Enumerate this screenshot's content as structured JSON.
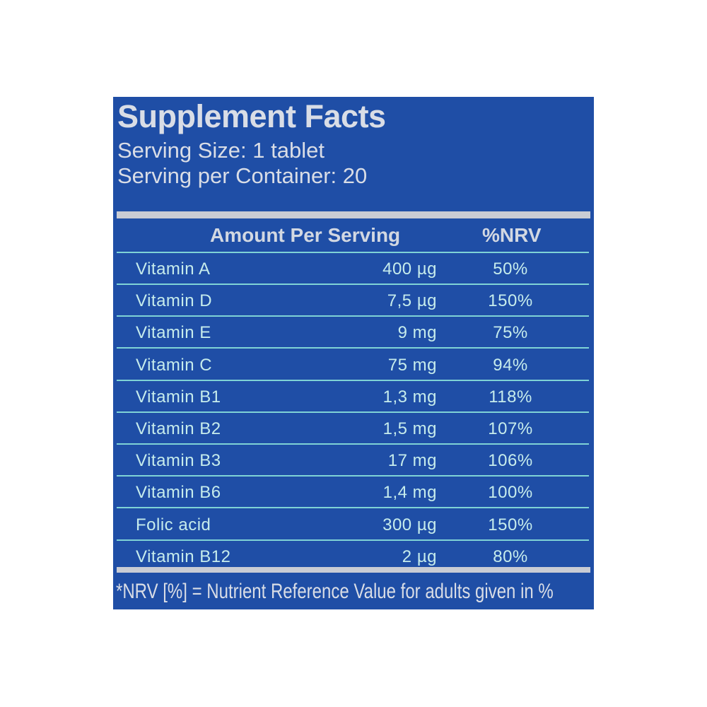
{
  "header": {
    "title": "Supplement Facts",
    "serving_size": "Serving Size: 1 tablet",
    "servings_per_container": "Serving per Container: 20"
  },
  "table": {
    "columns": [
      "Amount Per Serving",
      "%NRV"
    ],
    "rows": [
      [
        "Vitamin A",
        "400 µg",
        "50%"
      ],
      [
        "Vitamin D",
        "7,5 µg",
        "150%"
      ],
      [
        "Vitamin E",
        "9 mg",
        "75%"
      ],
      [
        "Vitamin C",
        "75 mg",
        "94%"
      ],
      [
        "Vitamin B1",
        "1,3 mg",
        "118%"
      ],
      [
        "Vitamin B2",
        "1,5 mg",
        "107%"
      ],
      [
        "Vitamin B3",
        "17 mg",
        "106%"
      ],
      [
        "Vitamin B6",
        "1,4 mg",
        "100%"
      ],
      [
        "Folic acid",
        "300 µg",
        "150%"
      ],
      [
        "Vitamin B12",
        "2 µg",
        "80%"
      ]
    ]
  },
  "footnote": "*NRV [%] = Nutrient Reference Value for adults given in %"
}
